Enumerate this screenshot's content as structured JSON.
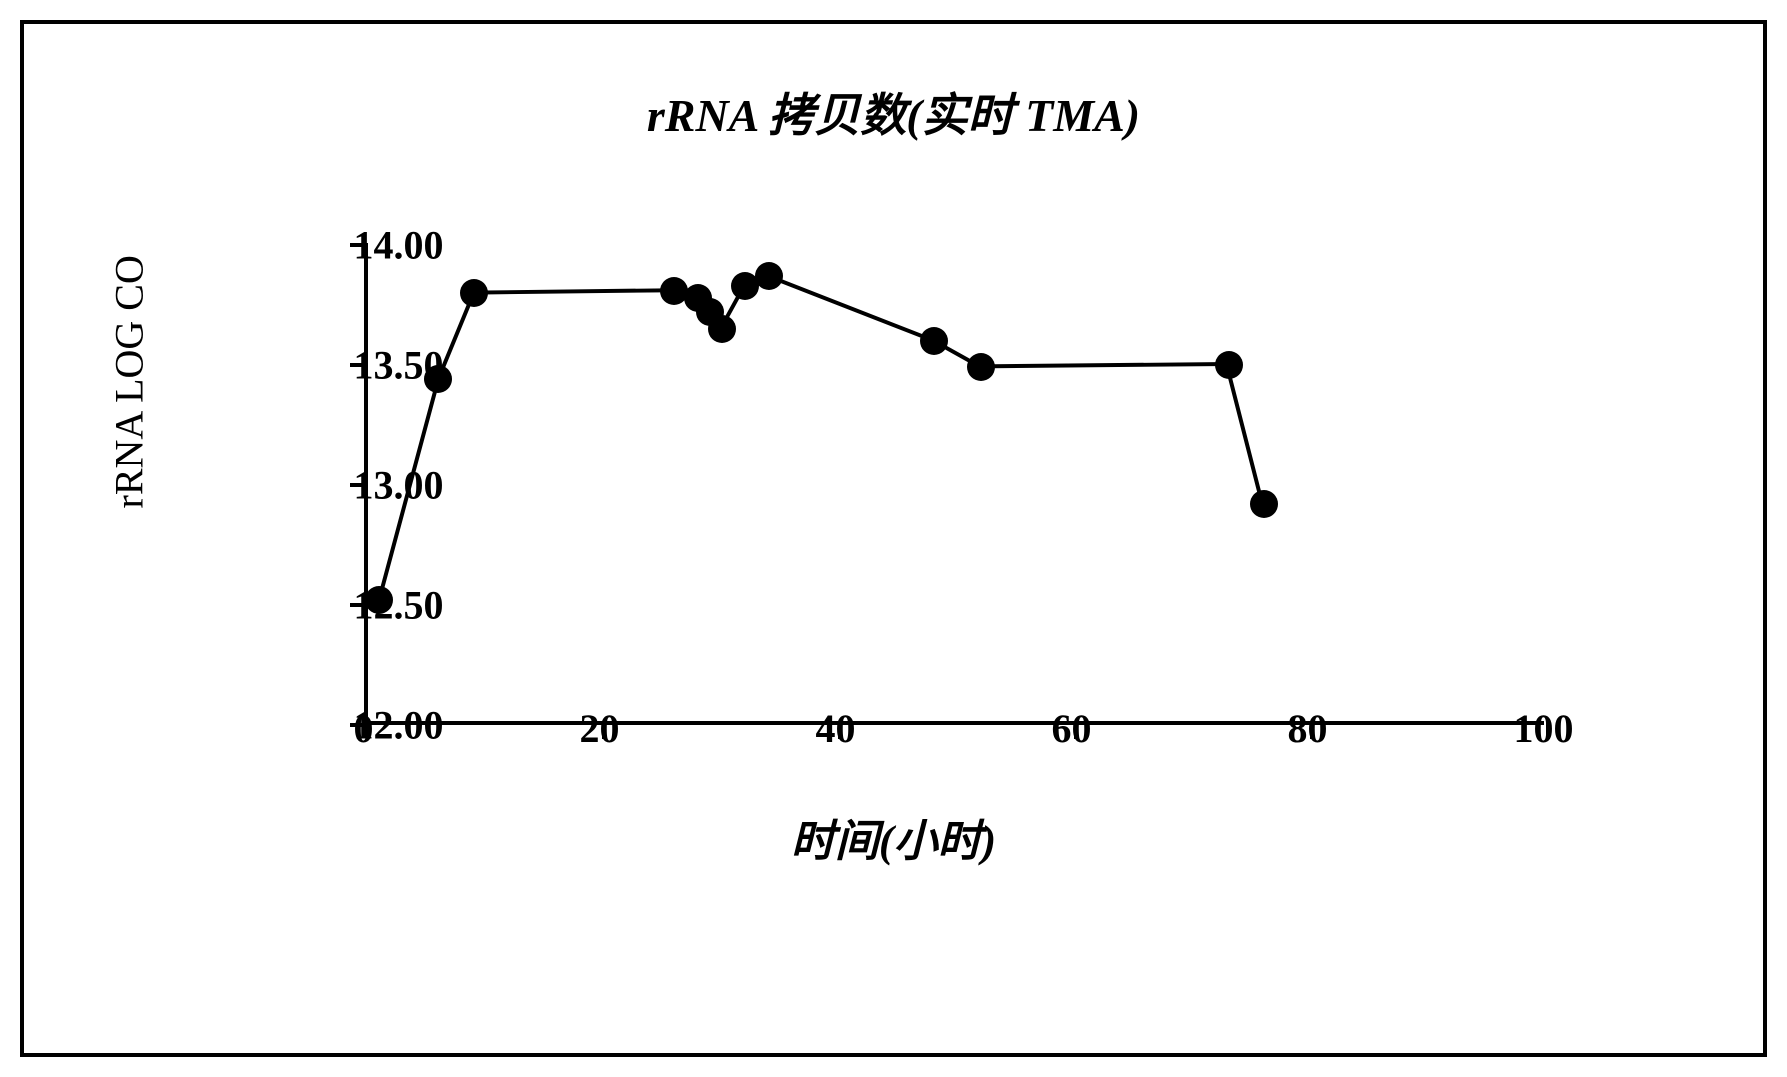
{
  "chart": {
    "type": "line",
    "title": "rRNA 拷贝数(实时 TMA)",
    "y_axis_label": "rRNA LOG CO",
    "x_axis_label": "时间(小时)",
    "title_fontsize": 46,
    "axis_label_fontsize": 40,
    "tick_fontsize": 40,
    "background_color": "#ffffff",
    "border_color": "#000000",
    "line_color": "#000000",
    "marker_color": "#000000",
    "marker_style": "circle",
    "marker_size": 28,
    "line_width": 4,
    "xlim": [
      0,
      100
    ],
    "ylim": [
      12.0,
      14.0
    ],
    "x_ticks": [
      0,
      20,
      40,
      60,
      80,
      100
    ],
    "y_ticks": [
      12.0,
      12.5,
      13.0,
      13.5,
      14.0
    ],
    "x_tick_labels": [
      "0",
      "20",
      "40",
      "60",
      "80",
      "100"
    ],
    "y_tick_labels": [
      "12.00",
      "12.50",
      "13.00",
      "13.50",
      "14.00"
    ],
    "data": {
      "x": [
        1,
        6,
        9,
        26,
        28,
        29,
        30,
        32,
        34,
        48,
        52,
        73,
        76
      ],
      "y": [
        12.52,
        13.44,
        13.8,
        13.81,
        13.78,
        13.72,
        13.65,
        13.83,
        13.87,
        13.6,
        13.49,
        13.5,
        12.92
      ]
    }
  }
}
